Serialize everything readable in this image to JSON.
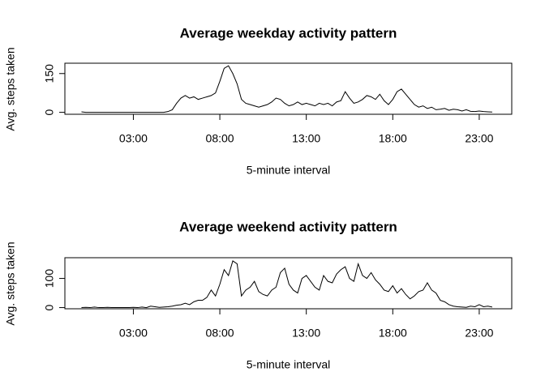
{
  "chart_data": [
    {
      "type": "line",
      "title": "Average weekday activity pattern",
      "x_label": "5-minute interval",
      "y_label": "Avg. steps taken",
      "color": "#000000",
      "x": [
        0,
        0.25,
        0.5,
        0.75,
        1,
        1.25,
        1.5,
        1.75,
        2,
        2.25,
        2.5,
        2.75,
        3,
        3.25,
        3.5,
        3.75,
        4,
        4.25,
        4.5,
        4.75,
        5,
        5.25,
        5.5,
        5.75,
        6,
        6.25,
        6.5,
        6.75,
        7,
        7.25,
        7.5,
        7.75,
        8,
        8.25,
        8.5,
        8.75,
        9,
        9.25,
        9.5,
        9.75,
        10,
        10.25,
        10.5,
        10.75,
        11,
        11.25,
        11.5,
        11.75,
        12,
        12.25,
        12.5,
        12.75,
        13,
        13.25,
        13.5,
        13.75,
        14,
        14.25,
        14.5,
        14.75,
        15,
        15.25,
        15.5,
        15.75,
        16,
        16.25,
        16.5,
        16.75,
        17,
        17.25,
        17.5,
        17.75,
        18,
        18.25,
        18.5,
        18.75,
        19,
        19.25,
        19.5,
        19.75,
        20,
        20.25,
        20.5,
        20.75,
        21,
        21.25,
        21.5,
        21.75,
        22,
        22.25,
        22.5,
        22.75,
        23,
        23.25,
        23.5,
        23.75
      ],
      "values": [
        2,
        0,
        0,
        0,
        0,
        0,
        0,
        0,
        0,
        0,
        0,
        0,
        0,
        0,
        0,
        0,
        0,
        0,
        0,
        0,
        3,
        10,
        35,
        55,
        65,
        55,
        60,
        50,
        55,
        60,
        65,
        75,
        120,
        170,
        180,
        150,
        110,
        50,
        35,
        30,
        25,
        20,
        25,
        30,
        40,
        55,
        50,
        35,
        25,
        30,
        40,
        30,
        35,
        30,
        25,
        35,
        30,
        35,
        25,
        40,
        45,
        80,
        55,
        35,
        40,
        50,
        65,
        60,
        50,
        70,
        45,
        30,
        50,
        80,
        90,
        70,
        50,
        30,
        20,
        25,
        15,
        20,
        10,
        12,
        15,
        8,
        12,
        10,
        5,
        10,
        4,
        3,
        5,
        3,
        2,
        1
      ],
      "xlim": [
        -0.96,
        24.88
      ],
      "ylim": [
        -7.5,
        190
      ],
      "xticks": [
        {
          "value": 3,
          "label": "03:00"
        },
        {
          "value": 8,
          "label": "08:00"
        },
        {
          "value": 13,
          "label": "13:00"
        },
        {
          "value": 18,
          "label": "18:00"
        },
        {
          "value": 23,
          "label": "23:00"
        }
      ],
      "yticks": [
        0,
        150
      ]
    },
    {
      "type": "line",
      "title": "Average weekend activity pattern",
      "x_label": "5-minute interval",
      "y_label": "Avg. steps taken",
      "color": "#000000",
      "x": [
        0,
        0.25,
        0.5,
        0.75,
        1,
        1.25,
        1.5,
        1.75,
        2,
        2.25,
        2.5,
        2.75,
        3,
        3.25,
        3.5,
        3.75,
        4,
        4.25,
        4.5,
        4.75,
        5,
        5.25,
        5.5,
        5.75,
        6,
        6.25,
        6.5,
        6.75,
        7,
        7.25,
        7.5,
        7.75,
        8,
        8.25,
        8.5,
        8.75,
        9,
        9.25,
        9.5,
        9.75,
        10,
        10.25,
        10.5,
        10.75,
        11,
        11.25,
        11.5,
        11.75,
        12,
        12.25,
        12.5,
        12.75,
        13,
        13.25,
        13.5,
        13.75,
        14,
        14.25,
        14.5,
        14.75,
        15,
        15.25,
        15.5,
        15.75,
        16,
        16.25,
        16.5,
        16.75,
        17,
        17.25,
        17.5,
        17.75,
        18,
        18.25,
        18.5,
        18.75,
        19,
        19.25,
        19.5,
        19.75,
        20,
        20.25,
        20.5,
        20.75,
        21,
        21.25,
        21.5,
        21.75,
        22,
        22.25,
        22.5,
        22.75,
        23,
        23.25,
        23.5,
        23.75
      ],
      "values": [
        0,
        1,
        0,
        2,
        0,
        0,
        1,
        0,
        0,
        0,
        0,
        0,
        1,
        0,
        2,
        0,
        5,
        3,
        1,
        2,
        3,
        5,
        8,
        10,
        15,
        10,
        20,
        25,
        25,
        35,
        60,
        40,
        80,
        130,
        110,
        160,
        150,
        40,
        60,
        70,
        90,
        55,
        45,
        40,
        60,
        70,
        120,
        135,
        80,
        60,
        50,
        100,
        110,
        90,
        70,
        60,
        110,
        90,
        85,
        115,
        130,
        140,
        100,
        90,
        150,
        110,
        100,
        120,
        95,
        80,
        60,
        55,
        75,
        50,
        65,
        45,
        30,
        40,
        55,
        60,
        85,
        60,
        50,
        25,
        20,
        10,
        5,
        3,
        2,
        1,
        5,
        3,
        10,
        3,
        5,
        2
      ],
      "xlim": [
        -0.96,
        24.88
      ],
      "ylim": [
        -4,
        171
      ],
      "xticks": [
        {
          "value": 3,
          "label": "03:00"
        },
        {
          "value": 8,
          "label": "08:00"
        },
        {
          "value": 13,
          "label": "13:00"
        },
        {
          "value": 18,
          "label": "18:00"
        },
        {
          "value": 23,
          "label": "23:00"
        }
      ],
      "yticks": [
        0,
        100
      ]
    }
  ]
}
